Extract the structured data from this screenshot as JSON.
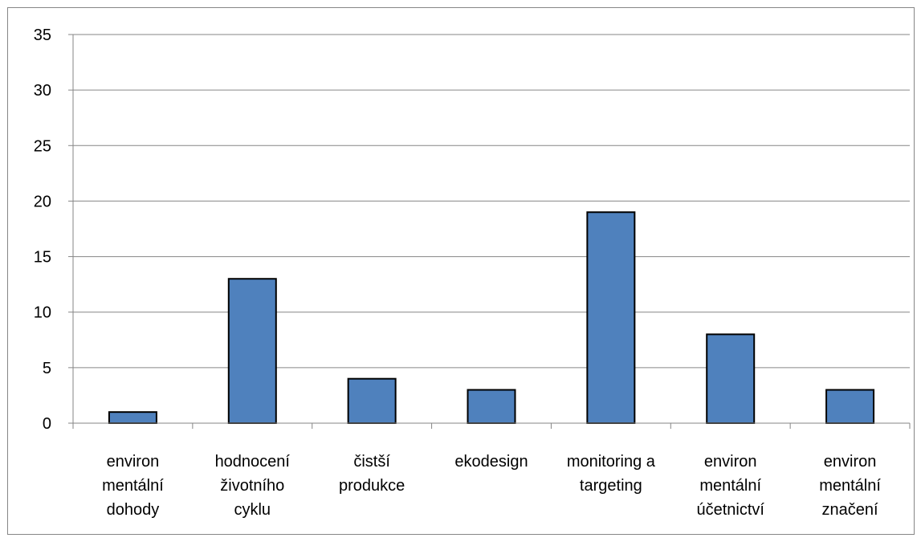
{
  "chart_data": {
    "type": "bar",
    "categories": [
      [
        "environ",
        "mentální",
        "dohody"
      ],
      [
        "hodnocení",
        "životního",
        "cyklu"
      ],
      [
        "čistší",
        "produkce"
      ],
      [
        "ekodesign"
      ],
      [
        "monitoring a",
        "targeting"
      ],
      [
        "environ",
        "mentální",
        "účetnictví"
      ],
      [
        "environ",
        "mentální",
        "značení"
      ]
    ],
    "values": [
      1,
      13,
      4,
      3,
      19,
      8,
      3
    ],
    "ylim": [
      0,
      35
    ],
    "yticks": [
      0,
      5,
      10,
      15,
      20,
      25,
      30,
      35
    ],
    "grid": true,
    "legend": "none",
    "colors": {
      "bar": "#4f81bd",
      "bar_outline": "#000000",
      "grid": "#868686",
      "axis": "#868686"
    }
  }
}
